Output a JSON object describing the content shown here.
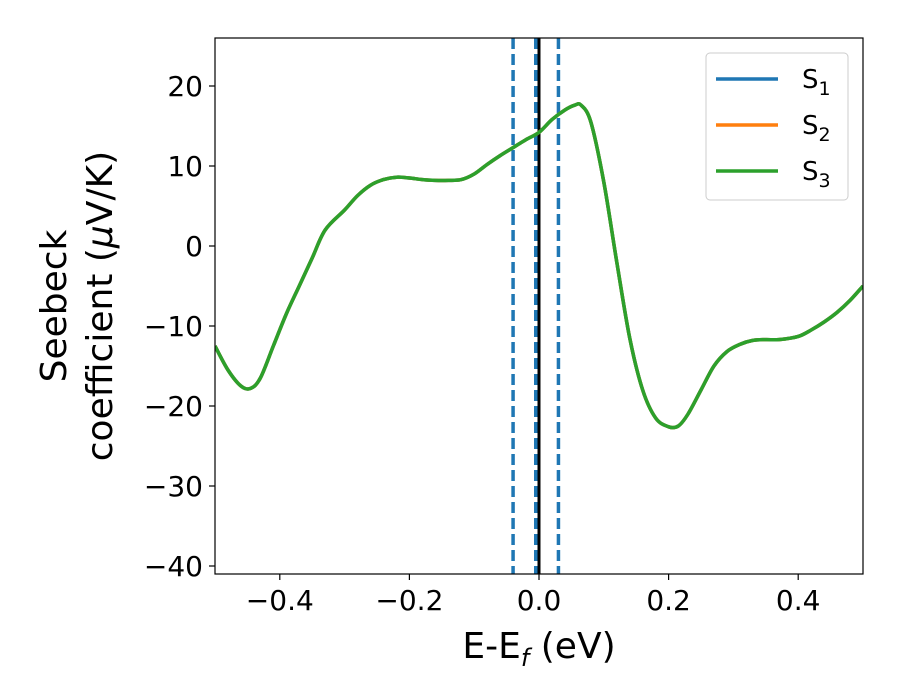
{
  "chart_data": {
    "type": "line",
    "xlabel": {
      "main": "E-E",
      "sub": "f",
      "unit": " (eV)"
    },
    "ylabel": {
      "line1": "Seebeck",
      "line2a": "coefficient  (",
      "mu": "μ",
      "line2b": "V/K)"
    },
    "xlim": [
      -0.5,
      0.5
    ],
    "ylim": [
      -41,
      26
    ],
    "xticks": [
      -0.4,
      -0.2,
      0.0,
      0.2,
      0.4
    ],
    "xtick_labels": [
      "−0.4",
      "−0.2",
      "0.0",
      "0.2",
      "0.4"
    ],
    "yticks": [
      -40,
      -30,
      -20,
      -10,
      0,
      10,
      20
    ],
    "ytick_labels": [
      "−40",
      "−30",
      "−20",
      "−10",
      "0",
      "10",
      "20"
    ],
    "grid": false,
    "legend_position": "top-right",
    "colors": {
      "s1": "#1f77b4",
      "s2": "#ff7f0e",
      "s3": "#2ca02c",
      "fermi": "#000000"
    },
    "series": [
      {
        "name": "S",
        "sub": "1",
        "color": "#1f77b4"
      },
      {
        "name": "S",
        "sub": "2",
        "color": "#ff7f0e"
      },
      {
        "name": "S",
        "sub": "3",
        "color": "#2ca02c"
      }
    ],
    "curve": {
      "x": [
        -0.5,
        -0.48,
        -0.46,
        -0.445,
        -0.43,
        -0.41,
        -0.39,
        -0.37,
        -0.35,
        -0.33,
        -0.3,
        -0.28,
        -0.26,
        -0.24,
        -0.22,
        -0.2,
        -0.18,
        -0.16,
        -0.14,
        -0.12,
        -0.1,
        -0.08,
        -0.06,
        -0.04,
        -0.02,
        0.0,
        0.02,
        0.04,
        0.055,
        0.065,
        0.08,
        0.1,
        0.12,
        0.14,
        0.16,
        0.18,
        0.2,
        0.215,
        0.23,
        0.25,
        0.27,
        0.29,
        0.31,
        0.33,
        0.35,
        0.37,
        0.4,
        0.42,
        0.44,
        0.46,
        0.48,
        0.5
      ],
      "y": [
        -12.5,
        -15.5,
        -17.5,
        -17.8,
        -16.5,
        -12.5,
        -8.5,
        -5.0,
        -1.5,
        2.0,
        4.5,
        6.3,
        7.6,
        8.3,
        8.6,
        8.5,
        8.3,
        8.2,
        8.2,
        8.3,
        9.0,
        10.2,
        11.3,
        12.3,
        13.3,
        14.2,
        15.8,
        17.0,
        17.6,
        17.6,
        15.5,
        8.0,
        -2.0,
        -11.5,
        -18.0,
        -21.5,
        -22.6,
        -22.5,
        -21.0,
        -18.0,
        -15.0,
        -13.2,
        -12.3,
        -11.8,
        -11.7,
        -11.7,
        -11.3,
        -10.5,
        -9.5,
        -8.3,
        -6.8,
        -5.0
      ]
    },
    "vertical_lines": [
      {
        "x": -0.04,
        "style": "dashed",
        "color": "#1f77b4"
      },
      {
        "x": -0.005,
        "style": "dashed",
        "color": "#1f77b4"
      },
      {
        "x": 0.0,
        "style": "solid",
        "color": "#000000"
      },
      {
        "x": 0.03,
        "style": "dashed",
        "color": "#1f77b4"
      }
    ]
  }
}
